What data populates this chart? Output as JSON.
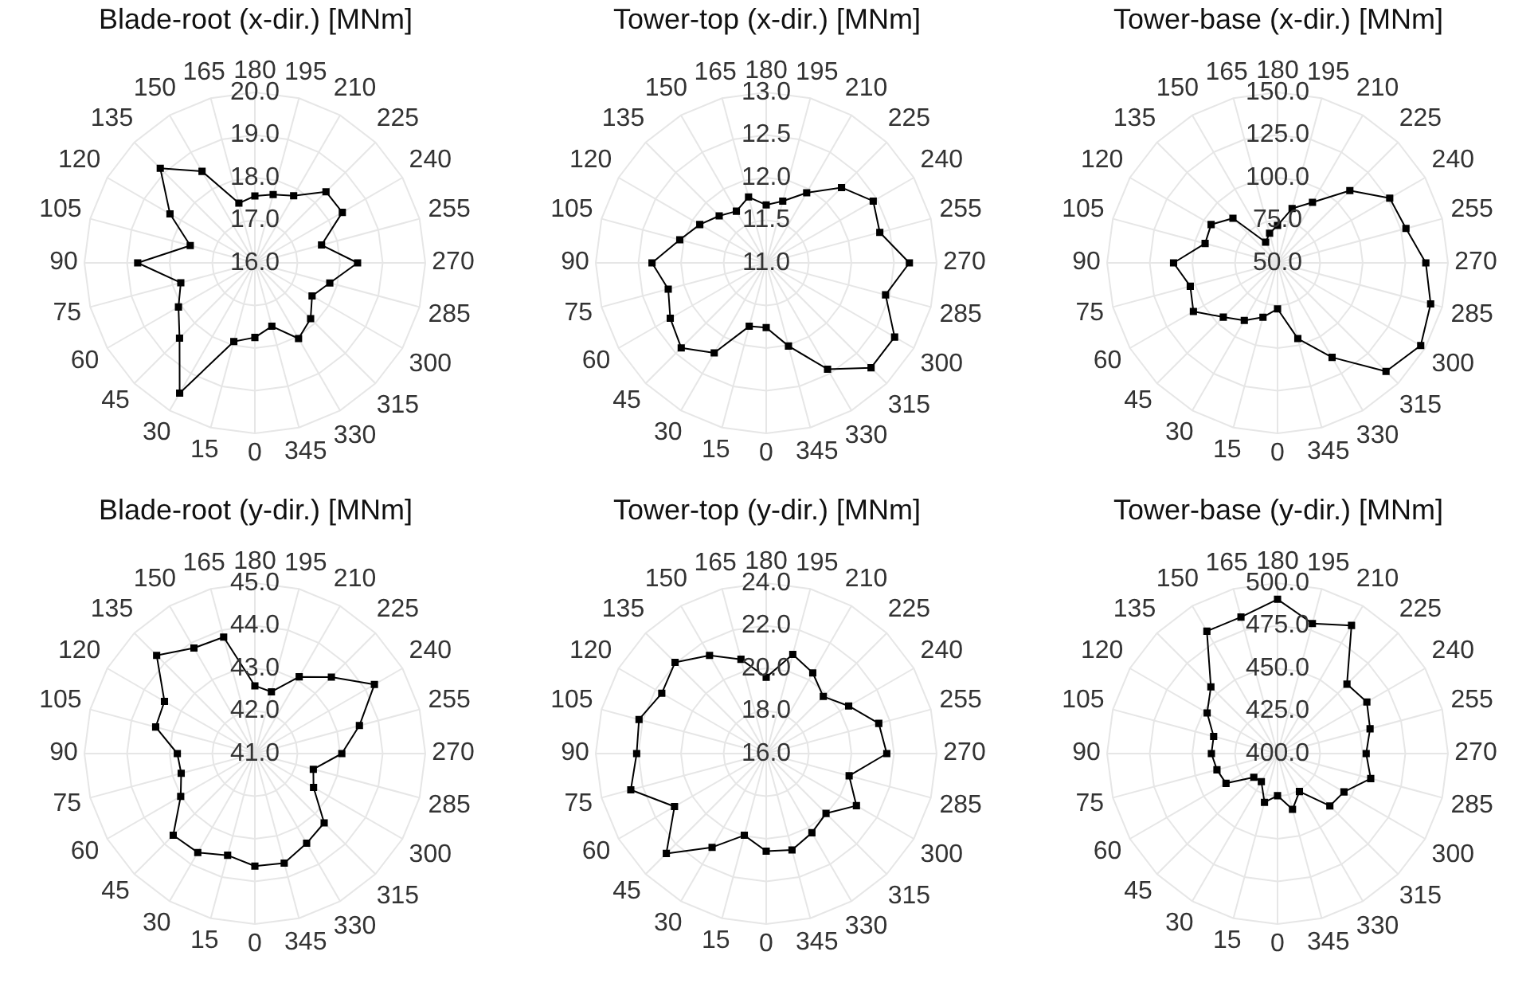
{
  "chart_data": [
    {
      "type": "radar",
      "title": "Blade-root (x-dir.) [MNm]",
      "categories": [
        "180",
        "195",
        "210",
        "225",
        "240",
        "255",
        "270",
        "285",
        "300",
        "315",
        "330",
        "345",
        "0",
        "15",
        "30",
        "45",
        "60",
        "75",
        "90",
        "105",
        "120",
        "135",
        "150",
        "165"
      ],
      "series": [
        {
          "color": "#000000",
          "values": [
            17.57,
            17.66,
            17.82,
            18.36,
            18.37,
            17.62,
            18.41,
            17.82,
            17.55,
            17.85,
            18.05,
            17.54,
            17.75,
            17.91,
            19.53,
            18.5,
            18.07,
            17.8,
            18.75,
            17.57,
            18.3,
            19.14,
            18.48,
            17.45
          ]
        }
      ],
      "ylim": [
        16,
        20
      ],
      "yticks": [
        {
          "value": 16,
          "label": "16.0"
        },
        {
          "value": 17,
          "label": "17.0"
        },
        {
          "value": 18,
          "label": "18.0"
        },
        {
          "value": 19,
          "label": "19.0"
        },
        {
          "value": 20,
          "label": "20.0"
        }
      ],
      "grid": true,
      "marker": "square"
    },
    {
      "type": "radar",
      "title": "Tower-top (x-dir.) [MNm]",
      "categories": [
        "180",
        "195",
        "210",
        "225",
        "240",
        "255",
        "270",
        "285",
        "300",
        "315",
        "330",
        "345",
        "0",
        "15",
        "30",
        "45",
        "60",
        "75",
        "90",
        "105",
        "120",
        "135",
        "150",
        "165"
      ],
      "series": [
        {
          "color": "#000000",
          "values": [
            11.68,
            11.75,
            11.95,
            12.25,
            12.45,
            12.38,
            12.68,
            12.45,
            12.74,
            12.74,
            12.44,
            12.01,
            11.76,
            11.77,
            12.22,
            12.41,
            12.3,
            12.19,
            12.34,
            12.05,
            11.9,
            11.78,
            11.7,
            11.8
          ]
        }
      ],
      "ylim": [
        11,
        13
      ],
      "yticks": [
        {
          "value": 11,
          "label": "11.0"
        },
        {
          "value": 11.5,
          "label": "11.5"
        },
        {
          "value": 12,
          "label": "12.0"
        },
        {
          "value": 12.5,
          "label": "12.5"
        },
        {
          "value": 13,
          "label": "13.0"
        }
      ],
      "grid": true,
      "marker": "square"
    },
    {
      "type": "radar",
      "title": "Tower-base (x-dir.) [MNm]",
      "categories": [
        "180",
        "195",
        "210",
        "225",
        "240",
        "255",
        "270",
        "285",
        "300",
        "315",
        "330",
        "345",
        "0",
        "15",
        "30",
        "45",
        "60",
        "75",
        "90",
        "105",
        "120",
        "135",
        "150",
        "165"
      ],
      "series": [
        {
          "color": "#000000",
          "values": [
            72,
            83,
            91,
            110,
            126,
            128,
            137,
            143,
            147,
            140,
            114,
            96,
            77,
            83,
            89,
            95,
            107,
            103,
            111,
            94,
            95,
            87,
            64,
            68
          ]
        }
      ],
      "ylim": [
        50,
        150
      ],
      "yticks": [
        {
          "value": 50,
          "label": "50.0"
        },
        {
          "value": 75,
          "label": "75.0"
        },
        {
          "value": 100,
          "label": "100.0"
        },
        {
          "value": 125,
          "label": "125.0"
        },
        {
          "value": 150,
          "label": "150.0"
        }
      ],
      "grid": true,
      "marker": "square"
    },
    {
      "type": "radar",
      "title": "Blade-root (y-dir.) [MNm]",
      "categories": [
        "180",
        "195",
        "210",
        "225",
        "240",
        "255",
        "270",
        "285",
        "300",
        "315",
        "330",
        "345",
        "0",
        "15",
        "30",
        "45",
        "60",
        "75",
        "90",
        "105",
        "120",
        "135",
        "150",
        "165"
      ],
      "series": [
        {
          "color": "#000000",
          "values": [
            42.59,
            42.5,
            43.08,
            43.54,
            44.24,
            43.54,
            43.04,
            42.42,
            42.59,
            43.3,
            43.43,
            43.66,
            43.64,
            43.47,
            43.68,
            43.71,
            43.01,
            42.79,
            42.82,
            43.41,
            43.45,
            44.26,
            43.86,
            43.83
          ]
        }
      ],
      "ylim": [
        41,
        45
      ],
      "yticks": [
        {
          "value": 41,
          "label": "41.0"
        },
        {
          "value": 42,
          "label": "42.0"
        },
        {
          "value": 43,
          "label": "43.0"
        },
        {
          "value": 44,
          "label": "44.0"
        },
        {
          "value": 45,
          "label": "45.0"
        }
      ],
      "grid": true,
      "marker": "square"
    },
    {
      "type": "radar",
      "title": "Tower-top (y-dir.) [MNm]",
      "categories": [
        "180",
        "195",
        "210",
        "225",
        "240",
        "255",
        "270",
        "285",
        "300",
        "315",
        "330",
        "345",
        "0",
        "15",
        "30",
        "45",
        "60",
        "75",
        "90",
        "105",
        "120",
        "135",
        "150",
        "165"
      ],
      "series": [
        {
          "color": "#000000",
          "values": [
            19.58,
            20.82,
            20.37,
            19.79,
            20.47,
            21.47,
            21.66,
            20.03,
            20.89,
            19.97,
            20.29,
            20.68,
            20.58,
            19.97,
            21.08,
            22.63,
            20.97,
            22.58,
            22.08,
            22.18,
            21.66,
            22.05,
            21.32,
            20.58
          ]
        }
      ],
      "ylim": [
        16,
        24
      ],
      "yticks": [
        {
          "value": 16,
          "label": "16.0"
        },
        {
          "value": 18,
          "label": "18.0"
        },
        {
          "value": 20,
          "label": "20.0"
        },
        {
          "value": 22,
          "label": "22.0"
        },
        {
          "value": 24,
          "label": "24.0"
        }
      ],
      "grid": true,
      "marker": "square"
    },
    {
      "type": "radar",
      "title": "Tower-base (y-dir.) [MNm]",
      "categories": [
        "180",
        "195",
        "210",
        "225",
        "240",
        "255",
        "270",
        "285",
        "300",
        "315",
        "330",
        "345",
        "0",
        "15",
        "30",
        "45",
        "60",
        "75",
        "90",
        "105",
        "120",
        "135",
        "150",
        "165"
      ],
      "series": [
        {
          "color": "#000000",
          "values": [
            490.5,
            479,
            486.8,
            457.6,
            460.5,
            456.2,
            452,
            456.6,
            445,
            443.4,
            425.7,
            433.9,
            424.7,
            429.6,
            419,
            419.7,
            434.9,
            436.8,
            438.8,
            438.8,
            447.7,
            455.3,
            482.9,
            482.9
          ]
        }
      ],
      "ylim": [
        400,
        500
      ],
      "yticks": [
        {
          "value": 400,
          "label": "400.0"
        },
        {
          "value": 425,
          "label": "425.0"
        },
        {
          "value": 450,
          "label": "450.0"
        },
        {
          "value": 475,
          "label": "475.0"
        },
        {
          "value": 500,
          "label": "500.0"
        }
      ],
      "grid": true,
      "marker": "square"
    }
  ]
}
